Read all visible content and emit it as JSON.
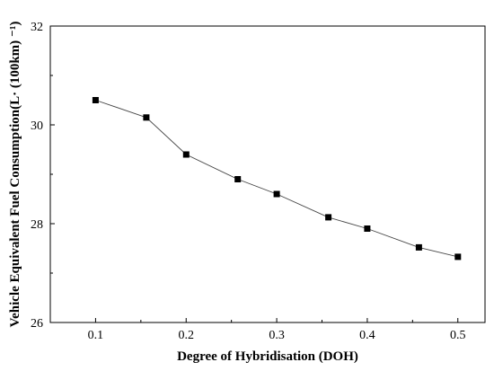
{
  "chart_data": {
    "type": "line",
    "title": "",
    "xlabel": "Degree of Hybridisation (DOH)",
    "ylabel": "Vehicle Equivalent Fuel Consumption(L· (100km) ⁻¹)",
    "xlim": [
      0.05,
      0.53
    ],
    "ylim": [
      26,
      32
    ],
    "x_ticks": [
      0.1,
      0.2,
      0.3,
      0.4,
      0.5
    ],
    "x_tick_labels": [
      "0.1",
      "0.2",
      "0.3",
      "0.4",
      "0.5"
    ],
    "y_ticks": [
      26,
      28,
      30,
      32
    ],
    "y_tick_labels": [
      "26",
      "28",
      "30",
      "32"
    ],
    "grid": false,
    "legend": "none",
    "series": [
      {
        "marker": "square",
        "color": "#000000",
        "x": [
          0.1,
          0.156,
          0.2,
          0.257,
          0.3,
          0.357,
          0.4,
          0.457,
          0.5
        ],
        "y": [
          30.5,
          30.15,
          29.4,
          28.9,
          28.6,
          28.13,
          27.9,
          27.52,
          27.33
        ]
      }
    ]
  }
}
